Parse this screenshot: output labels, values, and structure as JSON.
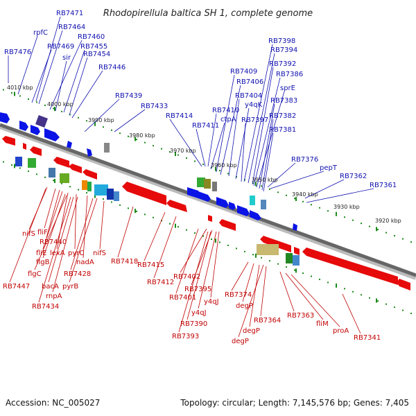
{
  "title": "Rhodopirellula baltica SH 1, complete genome",
  "footer": {
    "accession": "Accession: NC_005027",
    "summary": "Topology: circular; Length: 7,145,576 bp; Genes: 7,405"
  },
  "colors": {
    "forward_gene": "#0a14e6",
    "reverse_gene": "#e60a0a",
    "forward_label": "#1010b0",
    "reverse_label": "#c00000",
    "backbone": "#666666",
    "tick": "#1a8a1a"
  },
  "scale_labels": [
    "4010 kbp",
    "4000 kbp",
    "3990 kbp",
    "3980 kbp",
    "3970 kbp",
    "3960 kbp",
    "3950 kbp",
    "3940 kbp",
    "3930 kbp",
    "3920 kbp"
  ],
  "upper_labels": [
    "RB7471",
    "RB7476",
    "rpfC",
    "RB7469",
    "RB7464",
    "RB7460",
    "sir",
    "RB7455",
    "RB7454",
    "RB7446",
    "RB7439",
    "RB7433",
    "RB7414",
    "RB7411",
    "RB7410",
    "ctpA",
    "RB7409",
    "RB7406",
    "RB7404",
    "y4qK",
    "RB7397",
    "RB7398",
    "RB7394",
    "RB7392",
    "RB7386",
    "sprE",
    "RB7383",
    "RB7382",
    "RB7381",
    "RB7376",
    "pepT",
    "RB7362",
    "RB7361"
  ],
  "lower_labels": [
    "nifS",
    "fliF",
    "RB7440",
    "fliE",
    "lexA",
    "pyrC",
    "flgB",
    "nadA",
    "flgC",
    "RB7428",
    "RB7447",
    "bacA",
    "pyrB",
    "rnpA",
    "RB7434",
    "nifS",
    "RB7418",
    "RB7415",
    "RB7412",
    "RB7402",
    "RB7401",
    "RB7395",
    "y4qJ",
    "y4qJ",
    "RB7390",
    "RB7393",
    "RB7374",
    "degP",
    "RB7364",
    "degP",
    "degP",
    "RB7363",
    "fliM",
    "proA",
    "RB7341"
  ]
}
